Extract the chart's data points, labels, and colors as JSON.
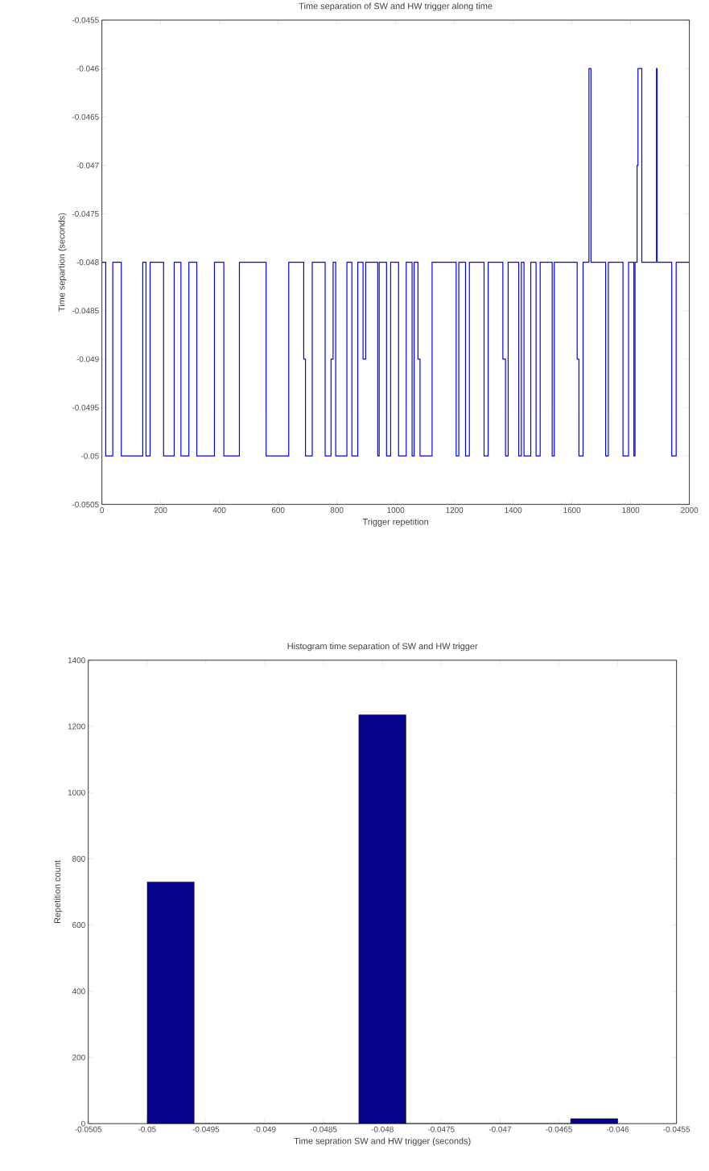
{
  "chart_data": [
    {
      "type": "step",
      "title": "Time separation of SW and HW trigger along time",
      "xlabel": "Trigger repetition",
      "ylabel": "Time separtion (seconds)",
      "color": "#0000ff",
      "x": [
        0,
        13,
        37,
        66,
        139,
        150,
        164,
        210,
        246,
        269,
        296,
        323,
        383,
        415,
        468,
        559,
        636,
        687,
        693,
        716,
        760,
        780,
        787,
        796,
        834,
        851,
        871,
        889,
        898,
        939,
        944,
        969,
        983,
        1010,
        1036,
        1056,
        1063,
        1076,
        1083,
        1124,
        1206,
        1215,
        1238,
        1251,
        1301,
        1315,
        1365,
        1374,
        1383,
        1419,
        1428,
        1437,
        1460,
        1478,
        1492,
        1533,
        1540,
        1618,
        1624,
        1638,
        1658,
        1665,
        1715,
        1724,
        1774,
        1793,
        1811,
        1815,
        1822,
        1825,
        1838,
        1888,
        1890,
        1940,
        1955,
        2000
      ],
      "values": [
        -0.048,
        -0.05,
        -0.048,
        -0.05,
        -0.048,
        -0.05,
        -0.048,
        -0.05,
        -0.048,
        -0.05,
        -0.048,
        -0.05,
        -0.048,
        -0.05,
        -0.048,
        -0.05,
        -0.048,
        -0.049,
        -0.05,
        -0.048,
        -0.05,
        -0.049,
        -0.048,
        -0.05,
        -0.048,
        -0.05,
        -0.048,
        -0.049,
        -0.048,
        -0.05,
        -0.048,
        -0.05,
        -0.048,
        -0.05,
        -0.048,
        -0.05,
        -0.048,
        -0.049,
        -0.05,
        -0.048,
        -0.05,
        -0.048,
        -0.05,
        -0.048,
        -0.05,
        -0.048,
        -0.049,
        -0.05,
        -0.048,
        -0.05,
        -0.048,
        -0.05,
        -0.048,
        -0.05,
        -0.048,
        -0.05,
        -0.048,
        -0.049,
        -0.05,
        -0.048,
        -0.046,
        -0.048,
        -0.05,
        -0.048,
        -0.05,
        -0.048,
        -0.05,
        -0.048,
        -0.047,
        -0.046,
        -0.048,
        -0.046,
        -0.048,
        -0.05,
        -0.048,
        -0.048
      ],
      "xlim": [
        0,
        2000
      ],
      "xticks": [
        0,
        200,
        400,
        600,
        800,
        1000,
        1200,
        1400,
        1600,
        1800,
        2000
      ],
      "ylim": [
        -0.0505,
        -0.0455
      ],
      "yticks": [
        -0.0505,
        -0.05,
        -0.0495,
        -0.049,
        -0.0485,
        -0.048,
        -0.0475,
        -0.047,
        -0.0465,
        -0.046,
        -0.0455
      ]
    },
    {
      "type": "histogram",
      "title": "Histogram time separation of SW and HW trigger",
      "xlabel": "Time sepration SW and HW trigger (seconds)",
      "ylabel": "Repetition count",
      "color": "#06038a",
      "bins": [
        -0.05,
        -0.0496,
        -0.0482,
        -0.0478,
        -0.0464,
        -0.046
      ],
      "values": [
        730,
        0,
        1235,
        0,
        15
      ],
      "xlim": [
        -0.0505,
        -0.0455
      ],
      "xticks": [
        -0.0505,
        -0.05,
        -0.0495,
        -0.049,
        -0.0485,
        -0.048,
        -0.0475,
        -0.047,
        -0.0465,
        -0.046,
        -0.0455
      ],
      "ylim": [
        0,
        1400
      ],
      "yticks": [
        0,
        200,
        400,
        600,
        800,
        1000,
        1200,
        1400
      ]
    }
  ]
}
